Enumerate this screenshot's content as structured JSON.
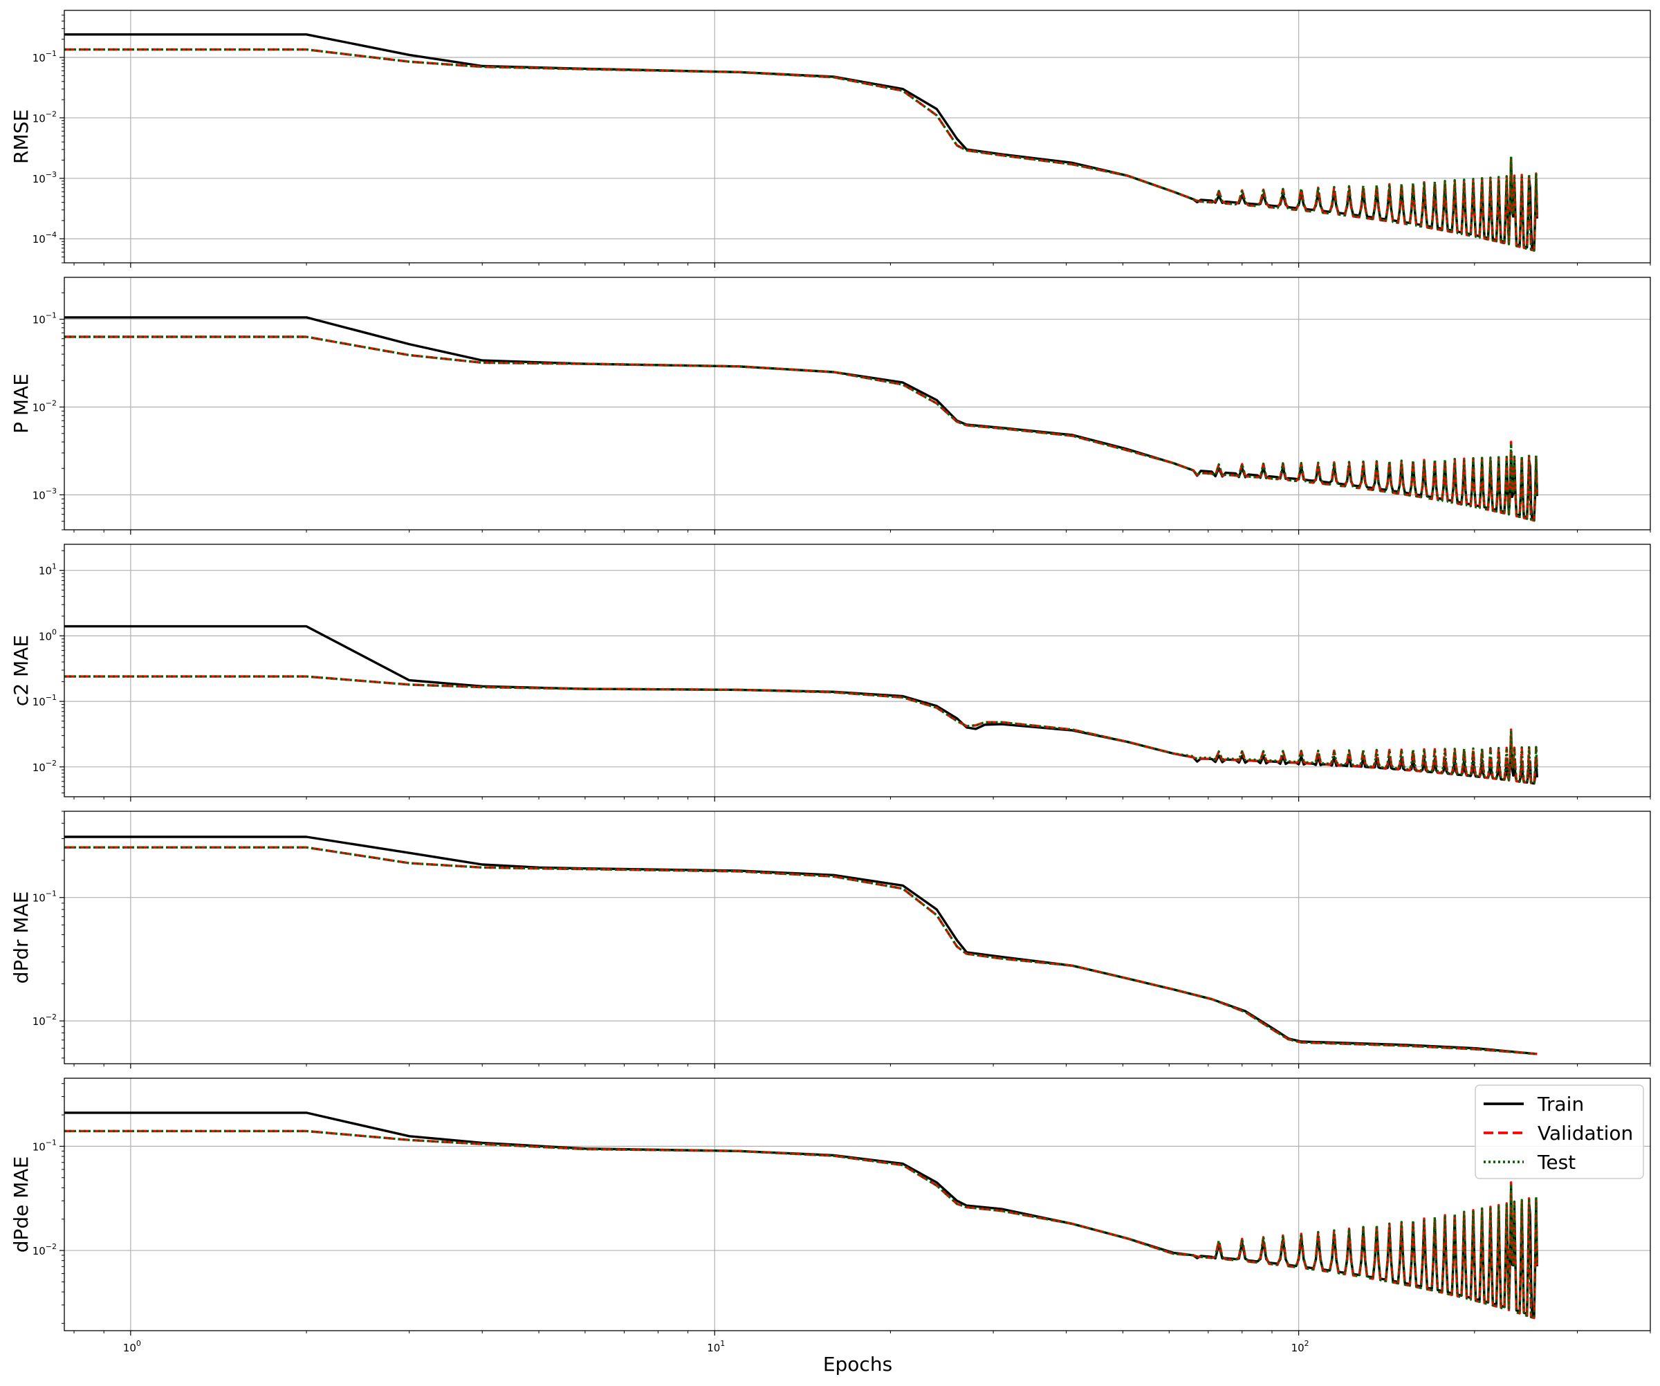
{
  "figure": {
    "xlabel": "Epochs",
    "legend": {
      "placement": "upper-right of bottom panel",
      "items": [
        {
          "label": "Train",
          "color": "#000000",
          "style": "solid"
        },
        {
          "label": "Validation",
          "color": "#ff0000",
          "style": "dashed"
        },
        {
          "label": "Test",
          "color": "#006400",
          "style": "dotted"
        }
      ]
    }
  },
  "chart_data": [
    {
      "type": "line",
      "ylabel": "RMSE",
      "xscale": "log",
      "yscale": "log",
      "xlim": [
        0.77,
        400
      ],
      "ylim": [
        4e-05,
        0.6
      ],
      "x_ticks": [
        "10^0",
        "10^1",
        "10^2"
      ],
      "y_ticks": [
        "10^-4",
        "10^-3",
        "10^-2",
        "10^-1"
      ],
      "grid": true,
      "series": [
        {
          "name": "Train",
          "color": "#000000",
          "dash": "solid",
          "x": [
            0,
            1,
            2,
            3,
            5,
            10,
            15,
            20,
            23,
            25,
            26,
            30,
            40,
            50,
            60,
            65
          ],
          "y": [
            0.24,
            0.24,
            0.11,
            0.072,
            0.065,
            0.057,
            0.048,
            0.03,
            0.014,
            0.0045,
            0.003,
            0.0025,
            0.0018,
            0.0011,
            0.0006,
            0.00045
          ],
          "osc": {
            "x_start": 65,
            "x_end": 255,
            "base_start": 0.00045,
            "base_end": 6.5e-05,
            "period": 7,
            "peak_start": 0.0005,
            "peak_end": 0.001,
            "extra_spikes": [
              [
                230,
                0.0021
              ],
              [
                248,
                0.0007
              ]
            ]
          }
        },
        {
          "name": "Validation",
          "color": "#ff0000",
          "dash": "dashed",
          "x": [
            0,
            1,
            2,
            3,
            5,
            10,
            15,
            20,
            23,
            25,
            26,
            30,
            40,
            50,
            60,
            65
          ],
          "y": [
            0.135,
            0.135,
            0.085,
            0.07,
            0.064,
            0.057,
            0.047,
            0.028,
            0.011,
            0.0035,
            0.0029,
            0.0024,
            0.0017,
            0.0011,
            0.0006,
            0.00045
          ],
          "osc": {
            "x_start": 65,
            "x_end": 255,
            "base_start": 0.00042,
            "base_end": 6.2e-05,
            "period": 7,
            "peak_start": 0.0006,
            "peak_end": 0.0012,
            "extra_spikes": [
              [
                230,
                0.0023
              ]
            ]
          }
        },
        {
          "name": "Test",
          "color": "#006400",
          "dash": "dotted",
          "x": [
            0,
            1,
            2,
            3,
            5,
            10,
            15,
            20,
            23,
            25,
            26,
            30,
            40,
            50,
            60,
            65
          ],
          "y": [
            0.135,
            0.135,
            0.085,
            0.07,
            0.064,
            0.057,
            0.047,
            0.028,
            0.011,
            0.0035,
            0.0029,
            0.0024,
            0.0017,
            0.0011,
            0.0006,
            0.00045
          ],
          "osc": {
            "x_start": 65,
            "x_end": 255,
            "base_start": 0.00042,
            "base_end": 6.2e-05,
            "period": 7,
            "peak_start": 0.0006,
            "peak_end": 0.0012,
            "extra_spikes": [
              [
                230,
                0.0023
              ]
            ]
          }
        }
      ]
    },
    {
      "type": "line",
      "ylabel": "P MAE",
      "xscale": "log",
      "yscale": "log",
      "xlim": [
        0.77,
        400
      ],
      "ylim": [
        0.0004,
        0.3
      ],
      "x_ticks": [
        "10^0",
        "10^1",
        "10^2"
      ],
      "y_ticks": [
        "10^-3",
        "10^-2",
        "10^-1"
      ],
      "grid": true,
      "series": [
        {
          "name": "Train",
          "color": "#000000",
          "dash": "solid",
          "x": [
            0,
            1,
            2,
            3,
            5,
            10,
            15,
            20,
            23,
            25,
            26,
            30,
            40,
            50,
            60,
            65
          ],
          "y": [
            0.105,
            0.105,
            0.052,
            0.034,
            0.031,
            0.029,
            0.025,
            0.019,
            0.012,
            0.007,
            0.0063,
            0.0058,
            0.0048,
            0.0033,
            0.0023,
            0.0019
          ],
          "osc": {
            "x_start": 65,
            "x_end": 255,
            "base_start": 0.0019,
            "base_end": 0.00052,
            "period": 7,
            "peak_start": 0.002,
            "peak_end": 0.0025,
            "extra_spikes": [
              [
                230,
                0.003
              ],
              [
                248,
                0.0021
              ]
            ]
          }
        },
        {
          "name": "Validation",
          "color": "#ff0000",
          "dash": "dashed",
          "x": [
            0,
            1,
            2,
            3,
            5,
            10,
            15,
            20,
            23,
            25,
            26,
            30,
            40,
            50,
            60,
            65
          ],
          "y": [
            0.063,
            0.063,
            0.039,
            0.032,
            0.031,
            0.029,
            0.025,
            0.018,
            0.011,
            0.0068,
            0.0062,
            0.0057,
            0.0047,
            0.0032,
            0.0023,
            0.0019
          ],
          "osc": {
            "x_start": 65,
            "x_end": 255,
            "base_start": 0.0018,
            "base_end": 0.0005,
            "period": 7,
            "peak_start": 0.0022,
            "peak_end": 0.0028,
            "extra_spikes": [
              [
                230,
                0.004
              ]
            ]
          }
        },
        {
          "name": "Test",
          "color": "#006400",
          "dash": "dotted",
          "x": [
            0,
            1,
            2,
            3,
            5,
            10,
            15,
            20,
            23,
            25,
            26,
            30,
            40,
            50,
            60,
            65
          ],
          "y": [
            0.063,
            0.063,
            0.039,
            0.032,
            0.031,
            0.029,
            0.025,
            0.018,
            0.011,
            0.0068,
            0.0062,
            0.0057,
            0.0047,
            0.0032,
            0.0023,
            0.0019
          ],
          "osc": {
            "x_start": 65,
            "x_end": 255,
            "base_start": 0.0018,
            "base_end": 0.0005,
            "period": 7,
            "peak_start": 0.0022,
            "peak_end": 0.0028,
            "extra_spikes": [
              [
                230,
                0.0038
              ]
            ]
          }
        }
      ]
    },
    {
      "type": "line",
      "ylabel": "c2 MAE",
      "xscale": "log",
      "yscale": "log",
      "xlim": [
        0.77,
        400
      ],
      "ylim": [
        0.0035,
        25
      ],
      "x_ticks": [
        "10^0",
        "10^1",
        "10^2"
      ],
      "y_ticks": [
        "10^-2",
        "10^-1",
        "10^0",
        "10^1"
      ],
      "grid": true,
      "series": [
        {
          "name": "Train",
          "color": "#000000",
          "dash": "solid",
          "x": [
            0,
            1,
            2,
            3,
            5,
            10,
            15,
            20,
            23,
            25,
            26,
            27,
            28,
            30,
            40,
            50,
            60,
            65
          ],
          "y": [
            1.4,
            1.4,
            0.21,
            0.17,
            0.155,
            0.15,
            0.14,
            0.12,
            0.085,
            0.055,
            0.04,
            0.038,
            0.044,
            0.045,
            0.036,
            0.024,
            0.016,
            0.014
          ],
          "osc": {
            "x_start": 65,
            "x_end": 255,
            "base_start": 0.0135,
            "base_end": 0.0055,
            "period": 7,
            "peak_start": 0.015,
            "peak_end": 0.012,
            "extra_spikes": [
              [
                230,
                0.03
              ],
              [
                248,
                0.012
              ]
            ]
          }
        },
        {
          "name": "Validation",
          "color": "#ff0000",
          "dash": "dashed",
          "x": [
            0,
            1,
            2,
            3,
            5,
            10,
            15,
            20,
            23,
            25,
            26,
            27,
            28,
            30,
            40,
            50,
            60,
            65
          ],
          "y": [
            0.24,
            0.24,
            0.18,
            0.165,
            0.155,
            0.15,
            0.138,
            0.115,
            0.08,
            0.05,
            0.042,
            0.043,
            0.048,
            0.048,
            0.037,
            0.024,
            0.016,
            0.014
          ],
          "osc": {
            "x_start": 65,
            "x_end": 255,
            "base_start": 0.0135,
            "base_end": 0.0055,
            "period": 7,
            "peak_start": 0.017,
            "peak_end": 0.02,
            "extra_spikes": [
              [
                230,
                0.037
              ]
            ]
          }
        },
        {
          "name": "Test",
          "color": "#006400",
          "dash": "dotted",
          "x": [
            0,
            1,
            2,
            3,
            5,
            10,
            15,
            20,
            23,
            25,
            26,
            27,
            28,
            30,
            40,
            50,
            60,
            65
          ],
          "y": [
            0.24,
            0.24,
            0.18,
            0.165,
            0.155,
            0.15,
            0.138,
            0.115,
            0.08,
            0.05,
            0.042,
            0.043,
            0.048,
            0.048,
            0.037,
            0.024,
            0.016,
            0.0145
          ],
          "osc": {
            "x_start": 65,
            "x_end": 255,
            "base_start": 0.014,
            "base_end": 0.0056,
            "period": 7,
            "peak_start": 0.017,
            "peak_end": 0.02,
            "extra_spikes": [
              [
                230,
                0.036
              ]
            ]
          }
        }
      ]
    },
    {
      "type": "line",
      "ylabel": "dPdr MAE",
      "xscale": "log",
      "yscale": "log",
      "xlim": [
        0.77,
        400
      ],
      "ylim": [
        0.0045,
        0.5
      ],
      "x_ticks": [
        "10^0",
        "10^1",
        "10^2"
      ],
      "y_ticks": [
        "10^-2",
        "10^-1"
      ],
      "grid": true,
      "series": [
        {
          "name": "Train",
          "color": "#000000",
          "dash": "solid",
          "x": [
            0,
            1,
            2,
            3,
            4,
            5,
            10,
            15,
            20,
            23,
            25,
            26,
            30,
            40,
            50,
            60,
            70,
            80,
            90,
            95,
            100,
            150,
            200,
            255
          ],
          "y": [
            0.31,
            0.31,
            0.23,
            0.185,
            0.175,
            0.172,
            0.165,
            0.152,
            0.125,
            0.08,
            0.045,
            0.036,
            0.033,
            0.028,
            0.022,
            0.018,
            0.015,
            0.012,
            0.0085,
            0.0072,
            0.0068,
            0.0064,
            0.006,
            0.0054
          ]
        },
        {
          "name": "Validation",
          "color": "#ff0000",
          "dash": "dashed",
          "x": [
            0,
            1,
            2,
            3,
            4,
            5,
            10,
            15,
            20,
            23,
            25,
            26,
            30,
            40,
            50,
            60,
            70,
            80,
            90,
            95,
            100,
            150,
            200,
            255
          ],
          "y": [
            0.255,
            0.255,
            0.19,
            0.175,
            0.172,
            0.17,
            0.163,
            0.148,
            0.118,
            0.072,
            0.04,
            0.035,
            0.032,
            0.028,
            0.022,
            0.018,
            0.015,
            0.0118,
            0.0083,
            0.0071,
            0.0067,
            0.0063,
            0.0059,
            0.0054
          ]
        },
        {
          "name": "Test",
          "color": "#006400",
          "dash": "dotted",
          "x": [
            0,
            1,
            2,
            3,
            4,
            5,
            10,
            15,
            20,
            23,
            25,
            26,
            30,
            40,
            50,
            60,
            70,
            80,
            90,
            95,
            100,
            150,
            200,
            255
          ],
          "y": [
            0.255,
            0.255,
            0.19,
            0.175,
            0.172,
            0.17,
            0.163,
            0.148,
            0.118,
            0.072,
            0.04,
            0.035,
            0.032,
            0.028,
            0.022,
            0.018,
            0.015,
            0.0118,
            0.0083,
            0.0071,
            0.0067,
            0.0063,
            0.0059,
            0.0054
          ]
        }
      ]
    },
    {
      "type": "line",
      "ylabel": "dPde MAE",
      "xscale": "log",
      "yscale": "log",
      "xlim": [
        0.77,
        400
      ],
      "ylim": [
        0.0017,
        0.45
      ],
      "x_ticks": [
        "10^0",
        "10^1",
        "10^2"
      ],
      "y_ticks": [
        "10^-2",
        "10^-1"
      ],
      "grid": true,
      "series": [
        {
          "name": "Train",
          "color": "#000000",
          "dash": "solid",
          "x": [
            0,
            1,
            2,
            3,
            5,
            10,
            15,
            20,
            23,
            25,
            26,
            30,
            40,
            50,
            60,
            65
          ],
          "y": [
            0.21,
            0.21,
            0.125,
            0.108,
            0.095,
            0.09,
            0.082,
            0.068,
            0.045,
            0.03,
            0.027,
            0.025,
            0.018,
            0.013,
            0.0095,
            0.009
          ],
          "osc": {
            "x_start": 65,
            "x_end": 255,
            "base_start": 0.009,
            "base_end": 0.0023,
            "period": 7,
            "peak_start": 0.011,
            "peak_end": 0.03,
            "extra_spikes": [
              [
                230,
                0.04
              ],
              [
                248,
                0.022
              ]
            ]
          }
        },
        {
          "name": "Validation",
          "color": "#ff0000",
          "dash": "dashed",
          "x": [
            0,
            1,
            2,
            3,
            5,
            10,
            15,
            20,
            23,
            25,
            26,
            30,
            40,
            50,
            60,
            65
          ],
          "y": [
            0.14,
            0.14,
            0.115,
            0.105,
            0.094,
            0.09,
            0.081,
            0.066,
            0.042,
            0.028,
            0.026,
            0.024,
            0.018,
            0.013,
            0.0093,
            0.009
          ],
          "osc": {
            "x_start": 65,
            "x_end": 255,
            "base_start": 0.0088,
            "base_end": 0.0022,
            "period": 7,
            "peak_start": 0.012,
            "peak_end": 0.033,
            "extra_spikes": [
              [
                230,
                0.045
              ]
            ]
          }
        },
        {
          "name": "Test",
          "color": "#006400",
          "dash": "dotted",
          "x": [
            0,
            1,
            2,
            3,
            5,
            10,
            15,
            20,
            23,
            25,
            26,
            30,
            40,
            50,
            60,
            65
          ],
          "y": [
            0.14,
            0.14,
            0.115,
            0.105,
            0.094,
            0.09,
            0.081,
            0.066,
            0.042,
            0.028,
            0.026,
            0.024,
            0.018,
            0.013,
            0.0093,
            0.009
          ],
          "osc": {
            "x_start": 65,
            "x_end": 255,
            "base_start": 0.0088,
            "base_end": 0.0022,
            "period": 7,
            "peak_start": 0.012,
            "peak_end": 0.033,
            "extra_spikes": [
              [
                230,
                0.043
              ]
            ]
          }
        }
      ]
    }
  ]
}
